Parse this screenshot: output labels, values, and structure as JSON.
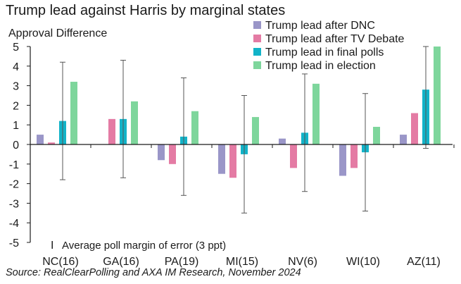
{
  "chart_data": {
    "type": "bar",
    "title": "Trump lead against Harris by marginal states",
    "ylabel": "Approval Difference",
    "xlabel": "",
    "source": "Source: RealClearPolling and AXA IM Research, November 2024",
    "error_bar_note": "Average poll margin of error (3 ppt)",
    "error_bar_symbol": "I",
    "ylim": [
      -5,
      5
    ],
    "yticks": [
      5,
      4,
      3,
      2,
      1,
      0,
      -1,
      -2,
      -3,
      -4,
      -5
    ],
    "categories": [
      "NC(16)",
      "GA(16)",
      "PA(19)",
      "MI(15)",
      "NV(6)",
      "WI(10)",
      "AZ(11)"
    ],
    "series": [
      {
        "name": "Trump lead after DNC",
        "color": "#9a96c8",
        "values": [
          0.5,
          0.0,
          -0.8,
          -1.5,
          0.3,
          -1.6,
          0.5
        ]
      },
      {
        "name": "Trump lead after TV Debate",
        "color": "#e47ba4",
        "values": [
          0.1,
          1.3,
          -1.0,
          -1.7,
          -1.2,
          -1.2,
          1.6
        ]
      },
      {
        "name": "Trump lead in final polls",
        "color": "#12b3c8",
        "values": [
          1.2,
          1.3,
          0.4,
          -0.5,
          0.6,
          -0.4,
          2.8
        ],
        "error": 3
      },
      {
        "name": "Trump lead in election",
        "color": "#7ed69c",
        "values": [
          3.2,
          2.2,
          1.7,
          1.4,
          3.1,
          0.9,
          5.0
        ]
      }
    ],
    "legend_position": "top-right",
    "grid": false
  }
}
